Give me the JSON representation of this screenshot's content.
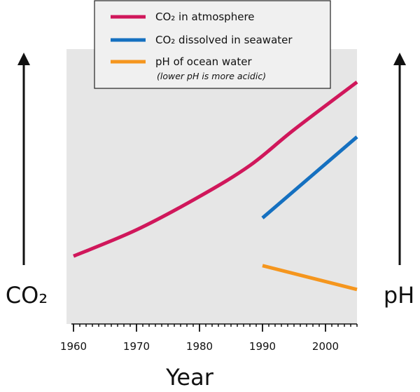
{
  "chart_data": {
    "type": "line",
    "title": "",
    "xlabel": "Year",
    "left_axis_label": "CO₂",
    "right_axis_label": "pH",
    "xlim": [
      1960,
      2005
    ],
    "ylim": [
      0,
      100
    ],
    "x_ticks": [
      1960,
      1970,
      1980,
      1990,
      2000
    ],
    "x_tick_labels": [
      "1960",
      "1970",
      "1980",
      "1990",
      "2000"
    ],
    "y_values_note": "relative, unlabeled scale",
    "legend_placement": "top-center",
    "grid": false,
    "plot_background": "#e6e6e6",
    "series": [
      {
        "name": "CO₂ in atmosphere",
        "color": "#d0175b",
        "x": [
          1960,
          1970,
          1980,
          1988,
          1995,
          2005
        ],
        "y": [
          22,
          33,
          47,
          60,
          75,
          95
        ]
      },
      {
        "name": "CO₂ dissolved in seawater",
        "color": "#1570c0",
        "x": [
          1990,
          2005
        ],
        "y": [
          38,
          72
        ]
      },
      {
        "name": "pH of ocean water",
        "note": "(lower pH is more acidic)",
        "color": "#f5961e",
        "x": [
          1990,
          2005
        ],
        "y": [
          18,
          8
        ]
      }
    ]
  }
}
